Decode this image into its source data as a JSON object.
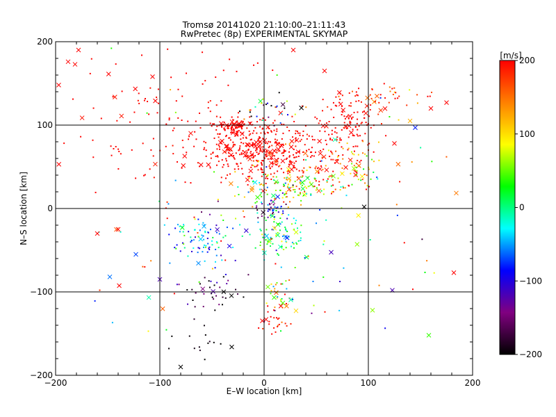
{
  "chart_data": {
    "type": "scatter",
    "title": "Tromsø 20141020 21:10:00–21:11:43",
    "subtitle": "RwPretec (8p) EXPERIMENTAL SKYMAP",
    "xlabel": "E–W location [km]",
    "ylabel": "N–S location [km]",
    "xlim": [
      -200,
      200
    ],
    "ylim": [
      -200,
      200
    ],
    "xticks": [
      "−200",
      "−100",
      "0",
      "100",
      "200"
    ],
    "yticks": [
      "−200",
      "−100",
      "0",
      "100",
      "200"
    ],
    "grid": true,
    "colorbar": {
      "label": "[m/s]",
      "range": [
        -200,
        200
      ],
      "ticks": [
        "200",
        "100",
        "0",
        "−100",
        "−200"
      ],
      "colors": [
        "#000000",
        "#800080",
        "#0000ff",
        "#00ffff",
        "#00ff00",
        "#ffff00",
        "#ff8000",
        "#ff0000"
      ]
    },
    "marker_types": [
      "dot",
      "x"
    ],
    "clusters": [
      {
        "x": -5,
        "y": 72,
        "sx": 28,
        "sy": 18,
        "n": 380,
        "v": 200,
        "sv": 8
      },
      {
        "x": 80,
        "y": 105,
        "sx": 18,
        "sy": 18,
        "n": 120,
        "v": 200,
        "sv": 8
      },
      {
        "x": -30,
        "y": 98,
        "sx": 8,
        "sy": 4,
        "n": 70,
        "v": 200,
        "sv": 4
      },
      {
        "x": 45,
        "y": 50,
        "sx": 30,
        "sy": 15,
        "n": 120,
        "v": 180,
        "sv": 35
      },
      {
        "x": -90,
        "y": 110,
        "sx": 55,
        "sy": 45,
        "n": 120,
        "v": 200,
        "sv": 5
      },
      {
        "x": 120,
        "y": 135,
        "sx": 20,
        "sy": 10,
        "n": 35,
        "v": 180,
        "sv": 40
      },
      {
        "x": 20,
        "y": 25,
        "sx": 25,
        "sy": 10,
        "n": 110,
        "v": 50,
        "sv": 60
      },
      {
        "x": 90,
        "y": 50,
        "sx": 12,
        "sy": 15,
        "n": 45,
        "v": 120,
        "sv": 50
      },
      {
        "x": 15,
        "y": -30,
        "sx": 15,
        "sy": 15,
        "n": 90,
        "v": 10,
        "sv": 50
      },
      {
        "x": -55,
        "y": -35,
        "sx": 20,
        "sy": 15,
        "n": 90,
        "v": -40,
        "sv": 50
      },
      {
        "x": 5,
        "y": 0,
        "sx": 8,
        "sy": 8,
        "n": 35,
        "v": -100,
        "sv": 50
      },
      {
        "x": -50,
        "y": -100,
        "sx": 15,
        "sy": 10,
        "n": 40,
        "v": -170,
        "sv": 40
      },
      {
        "x": 15,
        "y": -105,
        "sx": 8,
        "sy": 10,
        "n": 30,
        "v": 80,
        "sv": 60
      },
      {
        "x": 10,
        "y": -140,
        "sx": 8,
        "sy": 8,
        "n": 25,
        "v": 190,
        "sv": 20
      },
      {
        "x": -60,
        "y": -160,
        "sx": 15,
        "sy": 15,
        "n": 14,
        "v": -200,
        "sv": 10
      },
      {
        "x": 10,
        "y": 120,
        "sx": 15,
        "sy": 10,
        "n": 30,
        "v": -80,
        "sv": 120
      },
      {
        "x": 0,
        "y": -30,
        "sx": 110,
        "sy": 90,
        "n": 130,
        "v": 60,
        "sv": 130
      }
    ],
    "notable_points": [
      {
        "x": -178,
        "y": 190,
        "marker": "x",
        "v": 200
      },
      {
        "x": -188,
        "y": 176,
        "marker": "x",
        "v": 200
      },
      {
        "x": -197,
        "y": 148,
        "marker": "x",
        "v": 200
      },
      {
        "x": -160,
        "y": -30,
        "marker": "x",
        "v": 200
      },
      {
        "x": -140,
        "y": -25,
        "marker": "x",
        "v": 200
      },
      {
        "x": -148,
        "y": -82,
        "marker": "x",
        "v": -60
      },
      {
        "x": -123,
        "y": -55,
        "marker": "x",
        "v": -70
      },
      {
        "x": -100,
        "y": -85,
        "marker": "x",
        "v": -120
      },
      {
        "x": -80,
        "y": -190,
        "marker": "x",
        "v": -200
      },
      {
        "x": 182,
        "y": -77,
        "marker": "x",
        "v": 200
      },
      {
        "x": 158,
        "y": -152,
        "marker": "x",
        "v": 40
      },
      {
        "x": 104,
        "y": -122,
        "marker": "x",
        "v": 60
      },
      {
        "x": 123,
        "y": -98,
        "marker": "x",
        "v": -120
      },
      {
        "x": 96,
        "y": 2,
        "marker": "x",
        "v": -200
      },
      {
        "x": 175,
        "y": 127,
        "marker": "x",
        "v": 200
      },
      {
        "x": 160,
        "y": 120,
        "marker": "x",
        "v": 200
      },
      {
        "x": 145,
        "y": 97,
        "marker": "x",
        "v": -80
      },
      {
        "x": 140,
        "y": 105,
        "marker": "x",
        "v": 120
      },
      {
        "x": 125,
        "y": 78,
        "marker": "x",
        "v": 200
      },
      {
        "x": -107,
        "y": 158,
        "marker": "x",
        "v": 200
      },
      {
        "x": 28,
        "y": 190,
        "marker": "x",
        "v": 200
      },
      {
        "x": 58,
        "y": 165,
        "marker": "x",
        "v": 200
      }
    ]
  }
}
